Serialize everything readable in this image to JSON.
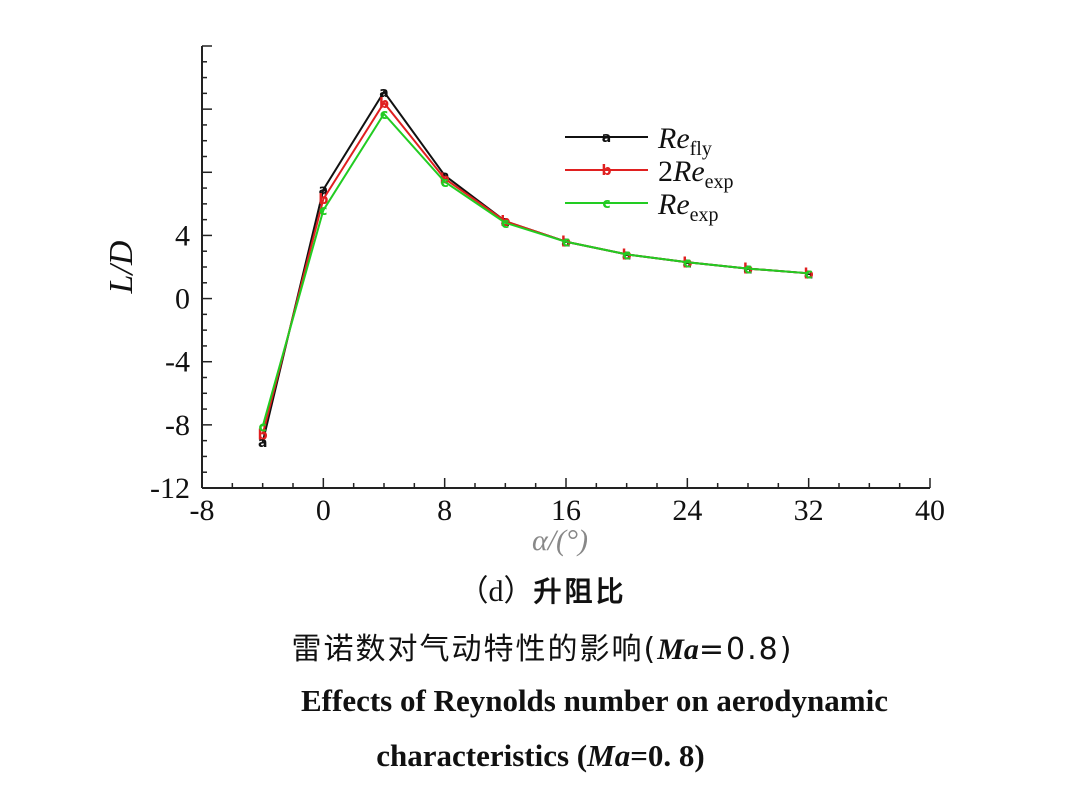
{
  "chart_data": {
    "type": "line",
    "xlabel": "α/(°)",
    "ylabel": "L/D",
    "xlim": [
      -8,
      40
    ],
    "ylim": [
      -12,
      16
    ],
    "xticks": [
      "-8",
      "0",
      "8",
      "16",
      "24",
      "32",
      "40"
    ],
    "yticks": [
      "-12",
      "-8",
      "-4",
      "0",
      "4"
    ],
    "legend_position": "top-right",
    "grid": false,
    "x": [
      -4,
      0,
      4,
      8,
      12,
      16,
      20,
      24,
      28,
      32
    ],
    "series": [
      {
        "name": "Re",
        "name_sub": "fly",
        "marker": "a",
        "color": "#111111",
        "values": [
          -9.1,
          6.9,
          13.1,
          7.8,
          4.9,
          3.6,
          2.8,
          2.3,
          1.9,
          1.6
        ]
      },
      {
        "name": "2Re",
        "name_sub": "exp",
        "marker": "b",
        "color": "#e02020",
        "values": [
          -8.6,
          6.3,
          12.4,
          7.6,
          4.9,
          3.6,
          2.8,
          2.3,
          1.9,
          1.6
        ]
      },
      {
        "name": "Re",
        "name_sub": "exp",
        "marker": "c",
        "color": "#22cc22",
        "values": [
          -8.1,
          5.6,
          11.7,
          7.4,
          4.8,
          3.6,
          2.8,
          2.3,
          1.9,
          1.6
        ]
      }
    ]
  },
  "captions": {
    "sub_prefix": "（d）",
    "sub_title": "升阻比",
    "zh_title": "雷诺数对气动特性的影响(",
    "zh_ma": "Ma",
    "zh_value": "=0.8)",
    "en_line1": "Effects of Reynolds number on aerodynamic",
    "en_line2_prefix": "characteristics (",
    "en_ma": "Ma",
    "en_value": "=0. 8)"
  }
}
